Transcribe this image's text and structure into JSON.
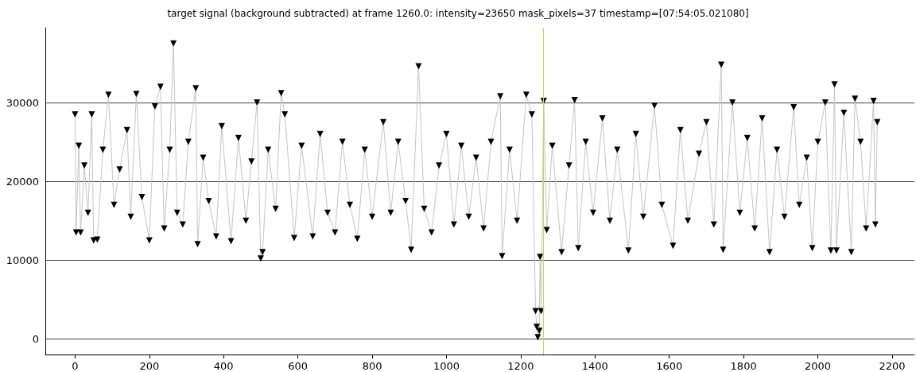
{
  "chart_data": {
    "type": "line",
    "title": "target signal (background subtracted) at frame 1260.0: intensity=23650 mask_pixels=37 timestamp=[07:54:05.021080]",
    "x": [
      0,
      3,
      10,
      15,
      25,
      35,
      45,
      50,
      60,
      75,
      90,
      105,
      120,
      140,
      150,
      165,
      180,
      200,
      215,
      230,
      240,
      255,
      265,
      275,
      290,
      305,
      325,
      330,
      345,
      360,
      380,
      395,
      420,
      440,
      460,
      475,
      490,
      500,
      505,
      520,
      540,
      555,
      565,
      590,
      610,
      640,
      660,
      680,
      700,
      720,
      740,
      760,
      780,
      800,
      830,
      850,
      870,
      890,
      905,
      925,
      940,
      960,
      980,
      1000,
      1020,
      1040,
      1060,
      1080,
      1100,
      1120,
      1145,
      1150,
      1170,
      1190,
      1215,
      1230,
      1240,
      1243,
      1246,
      1250,
      1252,
      1255,
      1262,
      1270,
      1285,
      1310,
      1330,
      1345,
      1355,
      1375,
      1395,
      1420,
      1440,
      1460,
      1490,
      1510,
      1530,
      1560,
      1580,
      1610,
      1630,
      1650,
      1680,
      1700,
      1720,
      1740,
      1745,
      1770,
      1790,
      1810,
      1830,
      1850,
      1870,
      1890,
      1910,
      1935,
      1950,
      1970,
      1985,
      2000,
      2020,
      2035,
      2045,
      2050,
      2070,
      2090,
      2100,
      2115,
      2130,
      2150,
      2155,
      2160
    ],
    "series": [
      {
        "color": "#000000",
        "values": [
          28500,
          13500,
          24500,
          13500,
          22000,
          16000,
          28500,
          12500,
          12600,
          24000,
          31000,
          17000,
          21500,
          26500,
          15500,
          31100,
          18000,
          12500,
          29500,
          32000,
          14000,
          24000,
          37500,
          16000,
          14500,
          25000,
          31800,
          12000,
          23000,
          17500,
          13000,
          27000,
          12400,
          25500,
          15000,
          22500,
          30000,
          10200,
          11000,
          24000,
          16500,
          31200,
          28500,
          12800,
          24500,
          13000,
          26000,
          16000,
          13500,
          25000,
          17000,
          12700,
          24000,
          15500,
          27500,
          16000,
          25000,
          17500,
          11300,
          34600,
          16500,
          13500,
          22000,
          26000,
          14500,
          24500,
          15500,
          23000,
          14000,
          25000,
          30800,
          10500,
          24000,
          15000,
          31000,
          28500,
          3500,
          1500,
          200,
          1000,
          10400,
          3500,
          30200,
          13800,
          24500,
          11000,
          22000,
          30300,
          11500,
          25000,
          16000,
          28000,
          15000,
          24000,
          11200,
          26000,
          15500,
          29600,
          17000,
          11800,
          26500,
          15000,
          23500,
          27500,
          14500,
          34800,
          11300,
          30000,
          16000,
          25500,
          14000,
          28000,
          11000,
          24000,
          15500,
          29400,
          17000,
          23000,
          11500,
          25000,
          30000,
          11200,
          32300,
          11200,
          28700,
          11000,
          30500,
          25000,
          14000,
          30200,
          14500,
          27500
        ]
      }
    ],
    "xlim": [
      -80,
      2260
    ],
    "ylim": [
      -2000,
      39500
    ],
    "xticks": [
      0,
      200,
      400,
      600,
      800,
      1000,
      1200,
      1400,
      1600,
      1800,
      2000,
      2200
    ],
    "yticks": [
      0,
      10000,
      20000,
      30000
    ],
    "grid": "y",
    "marker": "triangle",
    "line_style": "solid",
    "ref_lines": [
      {
        "axis": "x",
        "value": 1260,
        "color": "#c8d46a"
      }
    ]
  }
}
